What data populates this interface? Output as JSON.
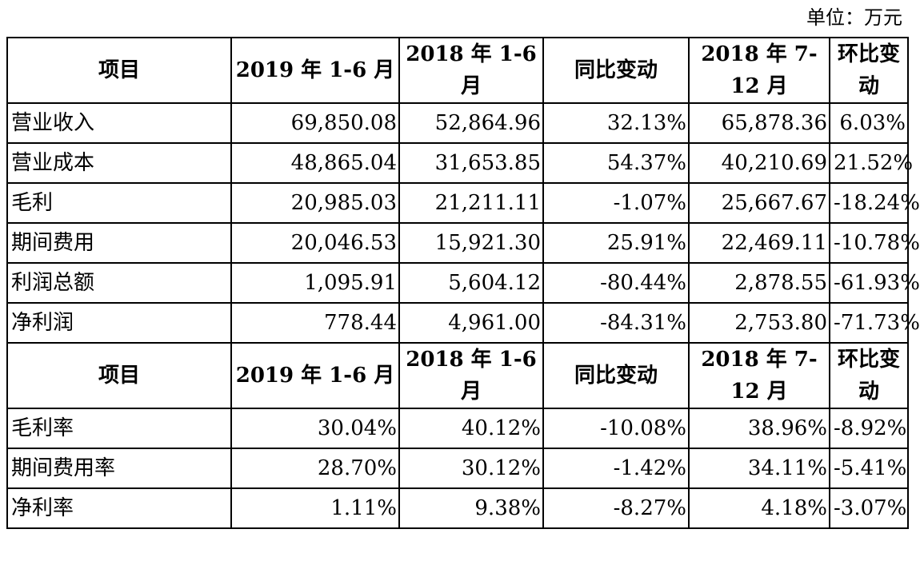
{
  "unit_label": "单位：万元",
  "table1": {
    "headers": [
      "项目",
      "2019 年 1-6 月",
      "2018 年 1-6 月",
      "同比变动",
      "2018 年 7-12 月",
      "环比变动"
    ],
    "rows": [
      {
        "item": "营业收入",
        "h1_2019": "69,850.08",
        "h1_2018": "52,864.96",
        "yoy": "32.13%",
        "h2_2018": "65,878.36",
        "qoq": "6.03%"
      },
      {
        "item": "营业成本",
        "h1_2019": "48,865.04",
        "h1_2018": "31,653.85",
        "yoy": "54.37%",
        "h2_2018": "40,210.69",
        "qoq": "21.52%"
      },
      {
        "item": "毛利",
        "h1_2019": "20,985.03",
        "h1_2018": "21,211.11",
        "yoy": "-1.07%",
        "h2_2018": "25,667.67",
        "qoq": "-18.24%"
      },
      {
        "item": "期间费用",
        "h1_2019": "20,046.53",
        "h1_2018": "15,921.30",
        "yoy": "25.91%",
        "h2_2018": "22,469.11",
        "qoq": "-10.78%"
      },
      {
        "item": "利润总额",
        "h1_2019": "1,095.91",
        "h1_2018": "5,604.12",
        "yoy": "-80.44%",
        "h2_2018": "2,878.55",
        "qoq": "-61.93%"
      },
      {
        "item": "净利润",
        "h1_2019": "778.44",
        "h1_2018": "4,961.00",
        "yoy": "-84.31%",
        "h2_2018": "2,753.80",
        "qoq": "-71.73%"
      }
    ]
  },
  "table2": {
    "headers": [
      "项目",
      "2019 年 1-6 月",
      "2018 年 1-6 月",
      "同比变动",
      "2018 年 7-12 月",
      "环比变动"
    ],
    "rows": [
      {
        "item": "毛利率",
        "h1_2019": "30.04%",
        "h1_2018": "40.12%",
        "yoy": "-10.08%",
        "h2_2018": "38.96%",
        "qoq": "-8.92%"
      },
      {
        "item": "期间费用率",
        "h1_2019": "28.70%",
        "h1_2018": "30.12%",
        "yoy": "-1.42%",
        "h2_2018": "34.11%",
        "qoq": "-5.41%"
      },
      {
        "item": "净利率",
        "h1_2019": "1.11%",
        "h1_2018": "9.38%",
        "yoy": "-8.27%",
        "h2_2018": "4.18%",
        "qoq": "-3.07%"
      }
    ]
  }
}
